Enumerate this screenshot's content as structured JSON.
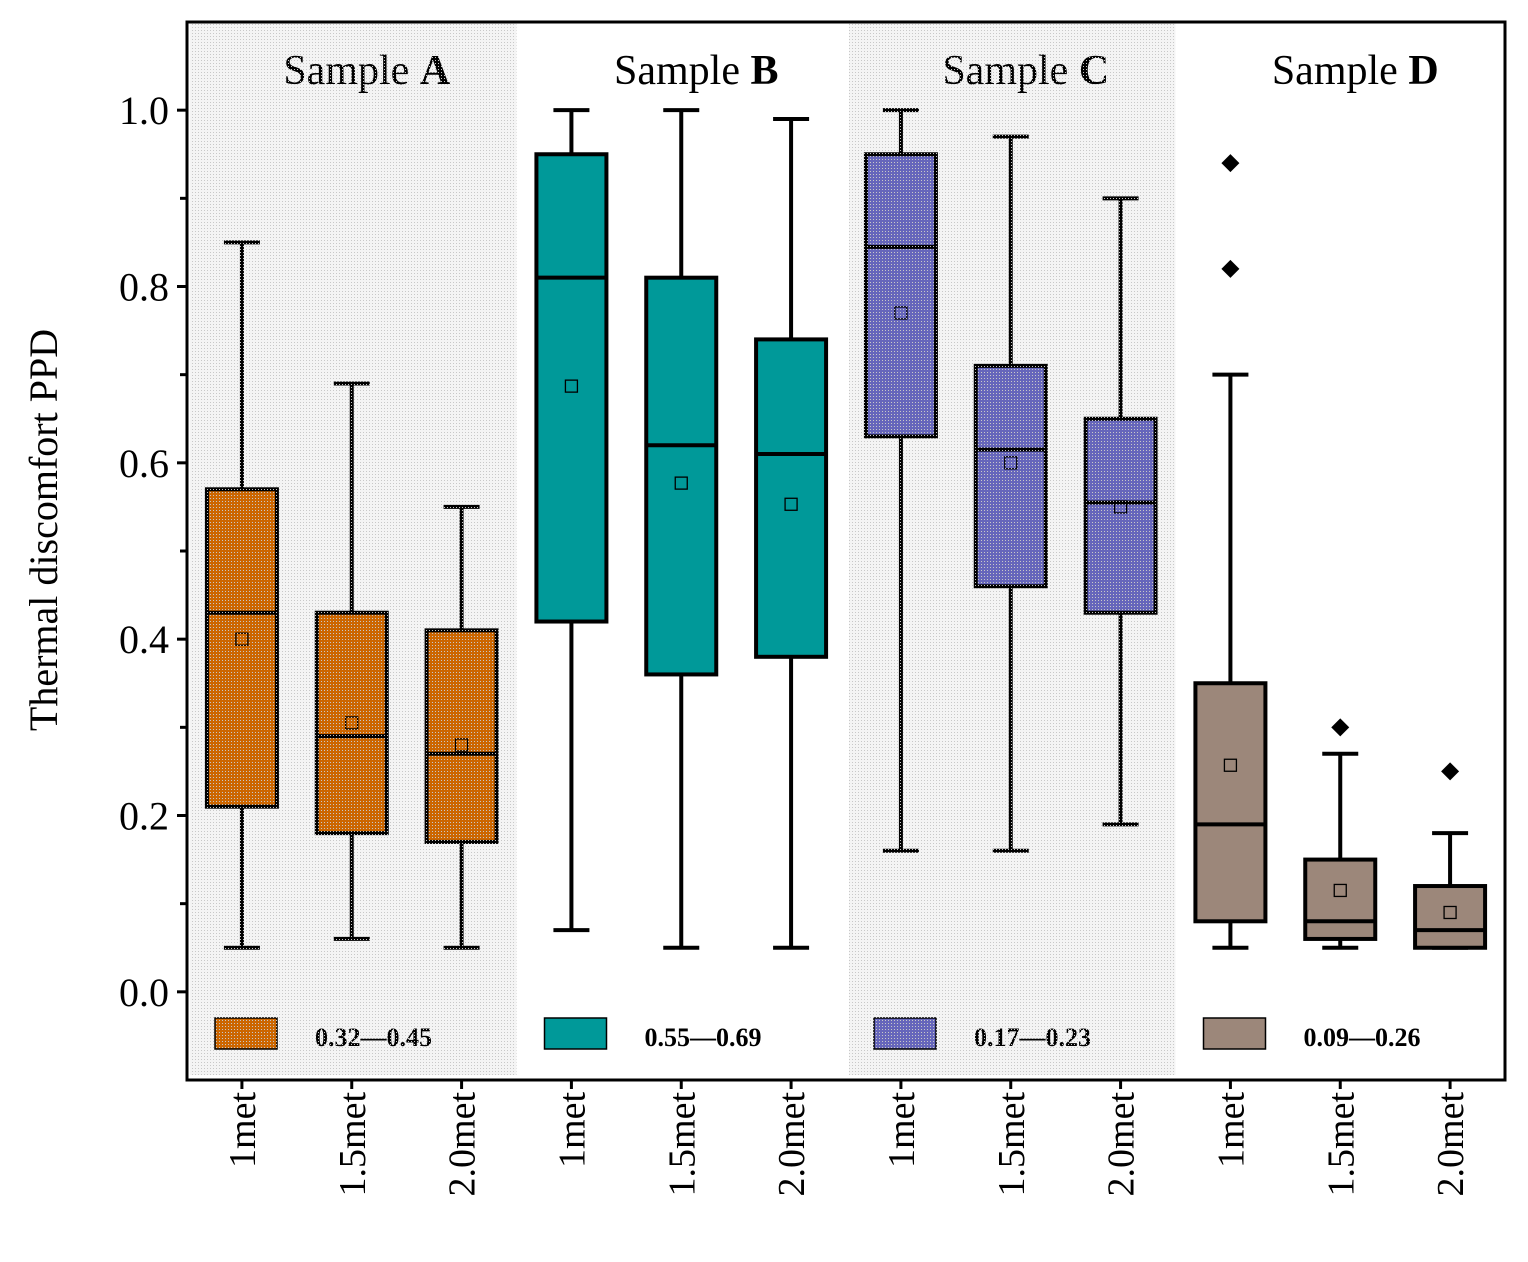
{
  "chart_data": {
    "type": "box",
    "ylabel": "Thermal discomfort PPD",
    "ylim": [
      -0.1,
      1.1
    ],
    "yticks": [
      "0.0",
      "0.2",
      "0.4",
      "0.6",
      "0.8",
      "1.0"
    ],
    "yminor_step": 0.1,
    "grid": false,
    "categories": [
      "1met",
      "1.5met",
      "2.0met",
      "1met",
      "1.5met",
      "2.0met",
      "1met",
      "1.5met",
      "2.0met",
      "1met",
      "1.5met",
      "2.0met"
    ],
    "groups": [
      {
        "title_prefix": "Sample ",
        "title_bold": "A",
        "color": "#cc6600",
        "shaded": true,
        "legend_label": "0.32—0.45",
        "boxes": [
          {
            "min": 0.05,
            "q1": 0.21,
            "median": 0.43,
            "q3": 0.57,
            "max": 0.85,
            "mean": 0.4,
            "outliers": []
          },
          {
            "min": 0.06,
            "q1": 0.18,
            "median": 0.29,
            "q3": 0.43,
            "max": 0.69,
            "mean": 0.305,
            "outliers": []
          },
          {
            "min": 0.05,
            "q1": 0.17,
            "median": 0.27,
            "q3": 0.41,
            "max": 0.55,
            "mean": 0.28,
            "outliers": []
          }
        ]
      },
      {
        "title_prefix": "Sample ",
        "title_bold": "B",
        "color": "#009999",
        "shaded": false,
        "legend_label": "0.55—0.69",
        "boxes": [
          {
            "min": 0.07,
            "q1": 0.42,
            "median": 0.81,
            "q3": 0.95,
            "max": 1.0,
            "mean": 0.687,
            "outliers": []
          },
          {
            "min": 0.05,
            "q1": 0.36,
            "median": 0.62,
            "q3": 0.81,
            "max": 1.0,
            "mean": 0.577,
            "outliers": []
          },
          {
            "min": 0.05,
            "q1": 0.38,
            "median": 0.61,
            "q3": 0.74,
            "max": 0.99,
            "mean": 0.553,
            "outliers": []
          }
        ]
      },
      {
        "title_prefix": "Sample ",
        "title_bold": "C",
        "color": "#6666bb",
        "shaded": true,
        "legend_label": "0.17—0.23",
        "boxes": [
          {
            "min": 0.16,
            "q1": 0.63,
            "median": 0.845,
            "q3": 0.95,
            "max": 1.0,
            "mean": 0.77,
            "outliers": []
          },
          {
            "min": 0.16,
            "q1": 0.46,
            "median": 0.615,
            "q3": 0.71,
            "max": 0.97,
            "mean": 0.6,
            "outliers": []
          },
          {
            "min": 0.19,
            "q1": 0.43,
            "median": 0.555,
            "q3": 0.65,
            "max": 0.9,
            "mean": 0.55,
            "outliers": []
          }
        ]
      },
      {
        "title_prefix": "Sample ",
        "title_bold": "D",
        "color": "#9c877a",
        "shaded": false,
        "legend_label": "0.09—0.26",
        "boxes": [
          {
            "min": 0.05,
            "q1": 0.08,
            "median": 0.19,
            "q3": 0.35,
            "max": 0.7,
            "mean": 0.257,
            "outliers": [
              0.94,
              0.82
            ]
          },
          {
            "min": 0.05,
            "q1": 0.06,
            "median": 0.08,
            "q3": 0.15,
            "max": 0.27,
            "mean": 0.115,
            "outliers": [
              0.3
            ]
          },
          {
            "min": 0.05,
            "q1": 0.05,
            "median": 0.07,
            "q3": 0.12,
            "max": 0.18,
            "mean": 0.09,
            "outliers": [
              0.25
            ]
          }
        ]
      }
    ]
  }
}
